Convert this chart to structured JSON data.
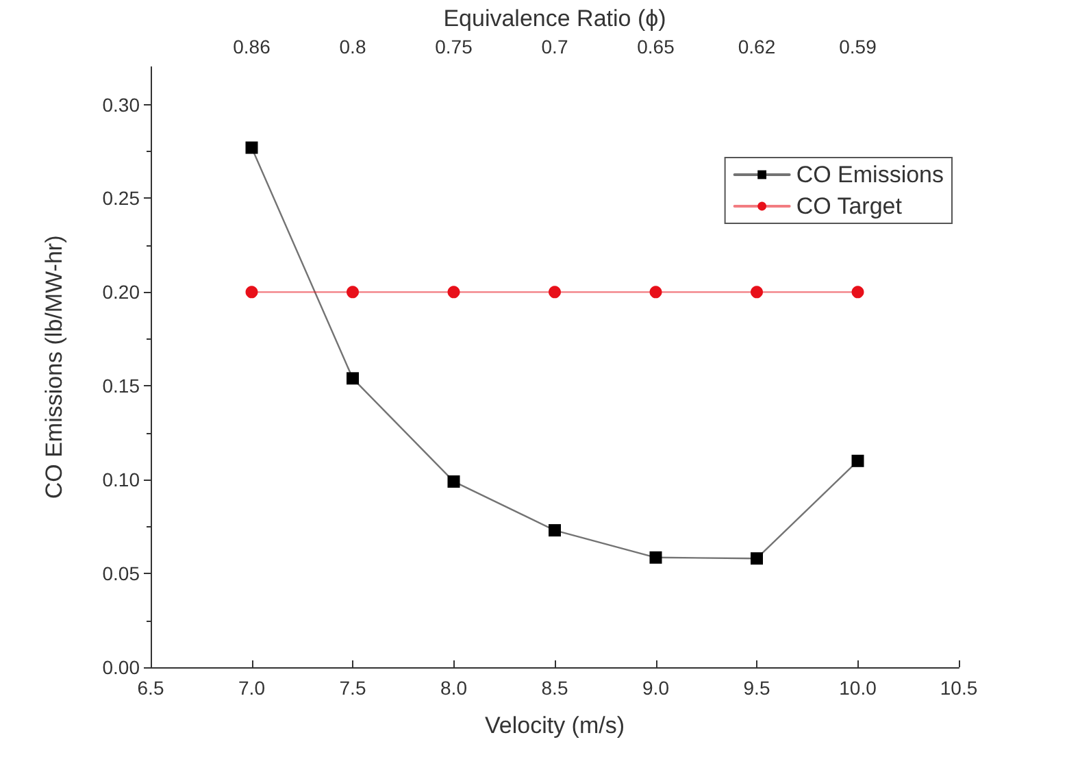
{
  "chart_data": {
    "type": "line",
    "xlabel": "Velocity (m/s)",
    "ylabel": "CO Emissions (lb/MW-hr)",
    "x2label": "Equivalence Ratio (ϕ)",
    "annotations": [
      "0.86",
      "0.8",
      "0.75",
      "0.7",
      "0.65",
      "0.62",
      "0.59"
    ],
    "x": [
      7.0,
      7.5,
      8.0,
      8.5,
      9.0,
      9.5,
      10.0
    ],
    "series": [
      {
        "name": "CO Emissions",
        "color": "#000000",
        "marker": "square",
        "values": [
          0.277,
          0.154,
          0.099,
          0.073,
          0.0585,
          0.058,
          0.11
        ]
      },
      {
        "name": "CO Target",
        "color": "#e8101a",
        "marker": "circle",
        "values": [
          0.2,
          0.2,
          0.2,
          0.2,
          0.2,
          0.2,
          0.2
        ]
      }
    ],
    "xlim": [
      6.5,
      10.5
    ],
    "xticks": [
      {
        "value": 6.5,
        "label": "6.5"
      },
      {
        "value": 7,
        "label": "7.0"
      },
      {
        "value": 7.5,
        "label": "7.5"
      },
      {
        "value": 8,
        "label": "8.0"
      },
      {
        "value": 8.5,
        "label": "8.5"
      },
      {
        "value": 9,
        "label": "9.0"
      },
      {
        "value": 9.5,
        "label": "9.5"
      },
      {
        "value": 10,
        "label": "10.0"
      },
      {
        "value": 10.5,
        "label": "10.5"
      }
    ],
    "ylim": [
      0,
      0.32
    ],
    "yticks": [
      {
        "value": 0,
        "label": "0.00"
      },
      {
        "value": 0.05,
        "label": "0.05"
      },
      {
        "value": 0.1,
        "label": "0.10"
      },
      {
        "value": 0.15,
        "label": "0.15"
      },
      {
        "value": 0.2,
        "label": "0.20"
      },
      {
        "value": 0.25,
        "label": "0.25"
      },
      {
        "value": 0.3,
        "label": "0.30"
      }
    ],
    "grid": false,
    "legend": "top right",
    "line_style": "solid"
  }
}
